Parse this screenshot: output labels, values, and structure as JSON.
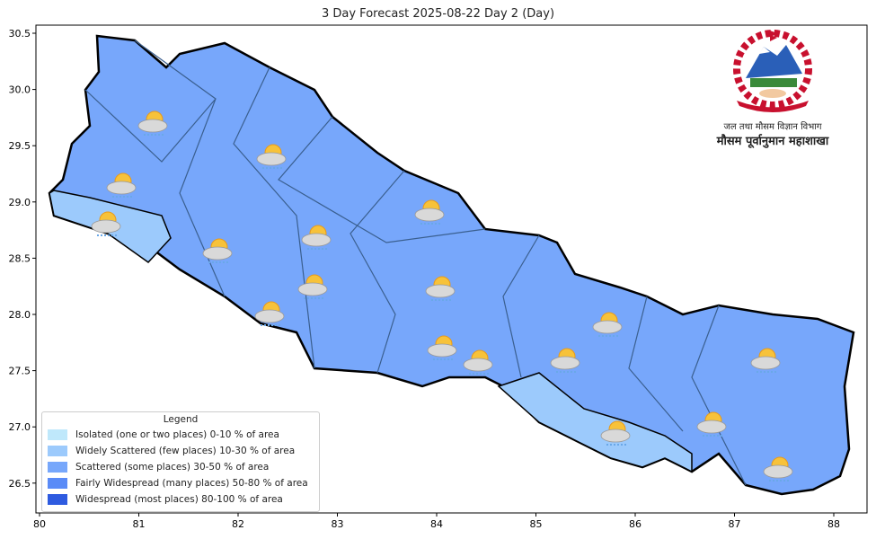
{
  "title": "3 Day Forecast 2025-08-22 Day 2 (Day)",
  "x_ticks": [
    "80",
    "81",
    "82",
    "83",
    "84",
    "85",
    "86",
    "87",
    "88"
  ],
  "y_ticks": [
    "30.5",
    "30.0",
    "29.5",
    "29.0",
    "28.5",
    "28.0",
    "27.5",
    "27.0",
    "26.5"
  ],
  "legend": {
    "title": "Legend",
    "items": [
      {
        "label": "Isolated (one or two places)  0-10 % of area",
        "color": "#bfe8fb"
      },
      {
        "label": "Widely Scattered (few places) 10-30 % of area",
        "color": "#9ccafc"
      },
      {
        "label": "Scattered (some places) 30-50  % of area",
        "color": "#77a7fb"
      },
      {
        "label": "Fairly Widespread (many places) 50-80 % of area",
        "color": "#5a8bf7"
      },
      {
        "label": "Widespread (most places) 80-100 % of area",
        "color": "#2e5be0"
      }
    ]
  },
  "logo": {
    "line1": "जल तथा मौसम विज्ञान विभाग",
    "line2": "मौसम पूर्वानुमान महाशाखा"
  },
  "map": {
    "dominant_category": "Scattered (some places) 30-50  % of area",
    "secondary_category": "Widely Scattered (few places) 10-30 % of area",
    "icon": "partly-cloudy-rain-icon"
  }
}
